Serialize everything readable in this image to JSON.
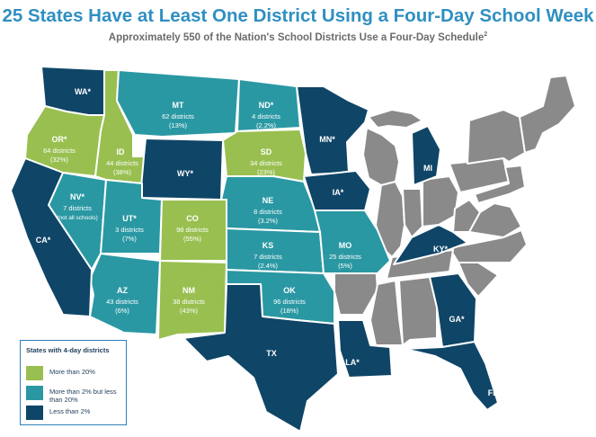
{
  "title": "25 States Have at Least One District Using a Four-Day School Week",
  "subtitle": "Approximately 550 of the Nation's School Districts Use a Four-Day Schedule",
  "subtitle_footnote": "2",
  "colors": {
    "more_than_20": "#99bf50",
    "between_2_and_20": "#2a98a3",
    "less_than_2": "#0f4567",
    "not_using": "#8a8a8a",
    "title": "#2f8fc1"
  },
  "legend": {
    "title": "States with 4-day districts",
    "items": [
      {
        "label": "More than 20%",
        "color": "#99bf50"
      },
      {
        "label": "More than 2% but less than 20%",
        "color": "#2a98a3"
      },
      {
        "label": "Less than 2%",
        "color": "#0f4567"
      }
    ]
  },
  "states": {
    "wa": {
      "name": "WA*",
      "category": "less_than_2"
    },
    "or": {
      "name": "OR*",
      "districts": "64 districts",
      "percent": "(32%)",
      "category": "more_than_20"
    },
    "id": {
      "name": "ID",
      "districts": "44 districts",
      "percent": "(38%)",
      "category": "more_than_20"
    },
    "mt": {
      "name": "MT",
      "districts": "62 districts",
      "percent": "(13%)",
      "category": "between_2_and_20"
    },
    "nd": {
      "name": "ND*",
      "districts": "4 districts",
      "percent": "(2.2%)",
      "category": "between_2_and_20"
    },
    "sd": {
      "name": "SD",
      "districts": "34 districts",
      "percent": "(23%)",
      "category": "more_than_20"
    },
    "wy": {
      "name": "WY*",
      "category": "less_than_2"
    },
    "nv": {
      "name": "NV*",
      "districts": "7 districts",
      "note": "(not all schools)",
      "category": "between_2_and_20"
    },
    "ut": {
      "name": "UT*",
      "districts": "3 districts",
      "percent": "(7%)",
      "category": "between_2_and_20"
    },
    "co": {
      "name": "CO",
      "districts": "98 districts",
      "percent": "(55%)",
      "category": "more_than_20"
    },
    "ne": {
      "name": "NE",
      "districts": "8 districts",
      "percent": "(3.2%)",
      "category": "between_2_and_20"
    },
    "ks": {
      "name": "KS",
      "districts": "7 districts",
      "percent": "(2.4%)",
      "category": "between_2_and_20"
    },
    "mo": {
      "name": "MO",
      "districts": "25 districts",
      "percent": "(5%)",
      "category": "between_2_and_20"
    },
    "ok": {
      "name": "OK",
      "districts": "96 districts",
      "percent": "(18%)",
      "category": "between_2_and_20"
    },
    "az": {
      "name": "AZ",
      "districts": "43 districts",
      "percent": "(6%)",
      "category": "between_2_and_20"
    },
    "nm": {
      "name": "NM",
      "districts": "38 districts",
      "percent": "(43%)",
      "category": "more_than_20"
    },
    "ca": {
      "name": "CA*",
      "category": "less_than_2"
    },
    "tx": {
      "name": "TX",
      "category": "less_than_2"
    },
    "mn": {
      "name": "MN*",
      "category": "less_than_2"
    },
    "ia": {
      "name": "IA*",
      "category": "less_than_2"
    },
    "mi": {
      "name": "MI",
      "category": "less_than_2"
    },
    "ky": {
      "name": "KY*",
      "category": "less_than_2"
    },
    "la": {
      "name": "LA*",
      "category": "less_than_2"
    },
    "ga": {
      "name": "GA*",
      "category": "less_than_2"
    },
    "fl": {
      "name": "FL*",
      "category": "less_than_2"
    }
  }
}
